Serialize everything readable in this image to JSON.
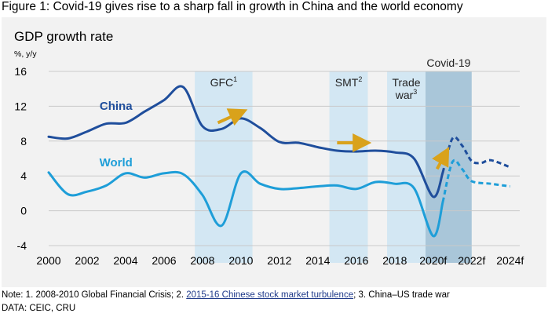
{
  "figure_title": "Figure 1: Covid-19 gives rise to a sharp fall in growth in China and the world economy",
  "note": {
    "prefix": "Note: 1. 2008-2010 Global Financial Crisis; 2. ",
    "link": "2015-16 Chinese stock market turbulence",
    "suffix": "; 3. China–US trade war"
  },
  "data_source": "DATA: CEIC, CRU",
  "colors": {
    "china": "#1f4e9c",
    "world": "#1e9ed8",
    "band_light": "#d3e7f3",
    "band_covid": "#a9c6d9",
    "arrow": "#d9a21b",
    "panel": "#f2f2f2"
  },
  "chart_data": {
    "type": "line",
    "title": "GDP growth rate",
    "ylabel": "%, y/y",
    "xlabel": "",
    "xlim": [
      2000,
      2024.5
    ],
    "ylim": [
      -4,
      16
    ],
    "y_ticks": [
      -4,
      0,
      4,
      8,
      12,
      16
    ],
    "x_ticks": [
      {
        "value": 2000,
        "label": "2000"
      },
      {
        "value": 2002,
        "label": "2002"
      },
      {
        "value": 2004,
        "label": "2004"
      },
      {
        "value": 2006,
        "label": "2006"
      },
      {
        "value": 2008,
        "label": "2008"
      },
      {
        "value": 2010,
        "label": "2010"
      },
      {
        "value": 2012,
        "label": "2012"
      },
      {
        "value": 2014,
        "label": "2014"
      },
      {
        "value": 2016,
        "label": "2016"
      },
      {
        "value": 2018,
        "label": "2018"
      },
      {
        "value": 2020,
        "label": "2020f"
      },
      {
        "value": 2022,
        "label": "2022f"
      },
      {
        "value": 2024,
        "label": "2024f"
      }
    ],
    "grid": "horizontal",
    "bands": [
      {
        "label": "GFC",
        "sup": "1",
        "from": 2007.6,
        "to": 2010.6,
        "style": "light"
      },
      {
        "label": "SMT",
        "sup": "2",
        "from": 2014.6,
        "to": 2016.6,
        "style": "light"
      },
      {
        "label": "Trade",
        "label2": "war",
        "sup": "3",
        "from": 2017.6,
        "to": 2019.6,
        "style": "light"
      },
      {
        "label": "Covid-19",
        "from": 2019.6,
        "to": 2022.0,
        "style": "covid"
      }
    ],
    "series": [
      {
        "name": "China",
        "color_key": "china",
        "actual": [
          [
            2000,
            8.5
          ],
          [
            2001,
            8.3
          ],
          [
            2002,
            9.1
          ],
          [
            2003,
            10.0
          ],
          [
            2004,
            10.1
          ],
          [
            2005,
            11.4
          ],
          [
            2006,
            12.7
          ],
          [
            2007,
            14.2
          ],
          [
            2008,
            9.7
          ],
          [
            2009,
            9.4
          ],
          [
            2010,
            10.6
          ],
          [
            2011,
            9.5
          ],
          [
            2012,
            7.9
          ],
          [
            2013,
            7.8
          ],
          [
            2014,
            7.3
          ],
          [
            2015,
            6.9
          ],
          [
            2016,
            6.8
          ],
          [
            2017,
            6.9
          ],
          [
            2018,
            6.7
          ],
          [
            2019,
            6.0
          ],
          [
            2020,
            1.6
          ],
          [
            2020.5,
            4.4
          ]
        ],
        "forecast": [
          [
            2020.5,
            4.4
          ],
          [
            2021,
            8.3
          ],
          [
            2021.5,
            7.5
          ],
          [
            2022,
            5.7
          ],
          [
            2022.5,
            5.5
          ],
          [
            2023,
            5.8
          ],
          [
            2024,
            5.0
          ]
        ]
      },
      {
        "name": "World",
        "color_key": "world",
        "actual": [
          [
            2000,
            4.4
          ],
          [
            2001,
            1.9
          ],
          [
            2002,
            2.2
          ],
          [
            2003,
            2.9
          ],
          [
            2004,
            4.3
          ],
          [
            2005,
            3.8
          ],
          [
            2006,
            4.3
          ],
          [
            2007,
            4.2
          ],
          [
            2008,
            1.8
          ],
          [
            2009,
            -1.7
          ],
          [
            2010,
            4.3
          ],
          [
            2011,
            3.1
          ],
          [
            2012,
            2.5
          ],
          [
            2013,
            2.6
          ],
          [
            2014,
            2.8
          ],
          [
            2015,
            2.9
          ],
          [
            2016,
            2.5
          ],
          [
            2017,
            3.3
          ],
          [
            2018,
            3.1
          ],
          [
            2019,
            2.6
          ],
          [
            2020,
            -2.9
          ],
          [
            2020.5,
            1.0
          ]
        ],
        "forecast": [
          [
            2020.5,
            1.0
          ],
          [
            2021,
            5.6
          ],
          [
            2021.5,
            4.8
          ],
          [
            2022,
            3.4
          ],
          [
            2023,
            3.1
          ],
          [
            2024,
            2.8
          ]
        ]
      }
    ],
    "series_labels": [
      {
        "name": "China",
        "text": "China",
        "x": 2003.5,
        "y": 11.6
      },
      {
        "name": "World",
        "text": "World",
        "x": 2003.5,
        "y": 5.1
      }
    ],
    "arrows": [
      {
        "from": [
          2008.8,
          10.1
        ],
        "to": [
          2009.9,
          11.2
        ]
      },
      {
        "from": [
          2015.0,
          7.8
        ],
        "to": [
          2016.3,
          7.8
        ]
      },
      {
        "from": [
          2020.2,
          4.8
        ],
        "to": [
          2020.6,
          6.4
        ]
      }
    ]
  }
}
